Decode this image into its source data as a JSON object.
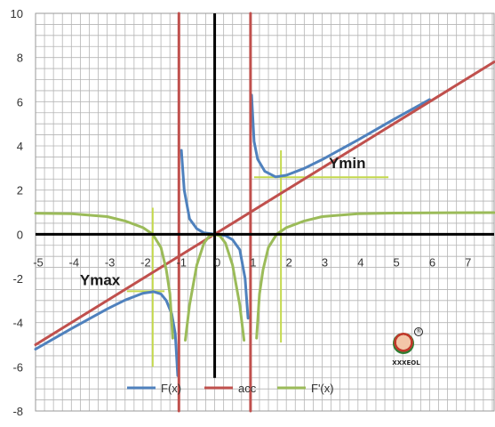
{
  "chart_data": {
    "type": "line",
    "title": "",
    "xlabel": "",
    "ylabel": "",
    "xlim": [
      -5,
      7.8
    ],
    "ylim": [
      -8,
      10
    ],
    "x_ticks": [
      -5,
      -4,
      -3,
      -2,
      -1,
      0,
      1,
      2,
      3,
      4,
      5,
      6,
      7
    ],
    "x_tick_labels": [
      "-5",
      "-4",
      "-3",
      "-2",
      "-1",
      "0",
      "1",
      "2",
      "3",
      "4",
      "5",
      "6",
      "7"
    ],
    "y_ticks": [
      -8,
      -6,
      -4,
      -2,
      0,
      2,
      4,
      6,
      8,
      10
    ],
    "y_tick_labels": [
      "-8",
      "-6",
      "-4",
      "-2",
      "0",
      "2",
      "4",
      "6",
      "8",
      "10"
    ],
    "grid": true,
    "legend_position": "bottom-center",
    "series": [
      {
        "name": "F(x)",
        "color": "#4F81BD",
        "segments": [
          [
            [
              -5,
              -5.2
            ],
            [
              -4,
              -4.27
            ],
            [
              -3,
              -3.38
            ],
            [
              -2.5,
              -2.98
            ],
            [
              -2,
              -2.67
            ],
            [
              -1.7,
              -2.6
            ],
            [
              -1.5,
              -2.7
            ],
            [
              -1.35,
              -3.0
            ],
            [
              -1.2,
              -3.6
            ],
            [
              -1.1,
              -4.5
            ],
            [
              -1.03,
              -6.4
            ]
          ],
          [
            [
              -0.93,
              3.8
            ],
            [
              -0.85,
              2.0
            ],
            [
              -0.7,
              0.7
            ],
            [
              -0.5,
              0.25
            ],
            [
              -0.3,
              0.06
            ],
            [
              0,
              0
            ],
            [
              0.3,
              -0.06
            ],
            [
              0.5,
              -0.25
            ],
            [
              0.7,
              -0.7
            ],
            [
              0.85,
              -2.0
            ],
            [
              0.93,
              -3.8
            ]
          ],
          [
            [
              1.03,
              6.3
            ],
            [
              1.1,
              4.2
            ],
            [
              1.2,
              3.4
            ],
            [
              1.4,
              2.85
            ],
            [
              1.7,
              2.6
            ],
            [
              2,
              2.67
            ],
            [
              2.5,
              2.98
            ],
            [
              3,
              3.38
            ],
            [
              4,
              4.27
            ],
            [
              5,
              5.2
            ],
            [
              6,
              6.1
            ]
          ]
        ]
      },
      {
        "name": "acc",
        "color": "#C0504D",
        "segments": [
          [
            [
              -5,
              -5
            ],
            [
              7.8,
              7.8
            ]
          ],
          [
            [
              -1,
              10
            ],
            [
              -1,
              -8
            ]
          ],
          [
            [
              1,
              10
            ],
            [
              1,
              -8
            ]
          ]
        ]
      },
      {
        "name": "F'(x)",
        "color": "#9BBB59",
        "segments": [
          [
            [
              -5,
              0.95
            ],
            [
              -4,
              0.93
            ],
            [
              -3,
              0.8
            ],
            [
              -2.5,
              0.6
            ],
            [
              -2,
              0.3
            ],
            [
              -1.73,
              0
            ],
            [
              -1.5,
              -0.6
            ],
            [
              -1.35,
              -1.6
            ],
            [
              -1.25,
              -2.7
            ],
            [
              -1.17,
              -4.7
            ]
          ],
          [
            [
              -0.82,
              -4.8
            ],
            [
              -0.7,
              -3.2
            ],
            [
              -0.5,
              -1.4
            ],
            [
              -0.3,
              -0.4
            ],
            [
              -0.15,
              -0.08
            ],
            [
              0,
              0
            ],
            [
              0.15,
              -0.08
            ],
            [
              0.3,
              -0.4
            ],
            [
              0.5,
              -1.4
            ],
            [
              0.7,
              -3.2
            ],
            [
              0.82,
              -4.8
            ]
          ],
          [
            [
              1.17,
              -4.7
            ],
            [
              1.25,
              -2.7
            ],
            [
              1.35,
              -1.6
            ],
            [
              1.5,
              -0.6
            ],
            [
              1.73,
              0
            ],
            [
              2,
              0.3
            ],
            [
              2.5,
              0.6
            ],
            [
              3,
              0.8
            ],
            [
              4,
              0.93
            ],
            [
              5,
              0.96
            ],
            [
              6,
              0.97
            ],
            [
              7.8,
              0.98
            ]
          ]
        ]
      }
    ],
    "guides": {
      "color": "#C4D94D",
      "lines": [
        [
          [
            -2.45,
            -2.58
          ],
          [
            -1.4,
            -2.58
          ]
        ],
        [
          [
            -1.73,
            1.2
          ],
          [
            -1.73,
            -6.0
          ]
        ],
        [
          [
            1.1,
            2.58
          ],
          [
            4.85,
            2.58
          ]
        ],
        [
          [
            1.85,
            3.8
          ],
          [
            1.85,
            -4.9
          ]
        ]
      ]
    },
    "annotations": [
      {
        "text": "Ymin",
        "x": 3.7,
        "y": 3.0
      },
      {
        "text": "Ymax",
        "x": -3.2,
        "y": -2.3
      }
    ],
    "logo": {
      "text": "XXXEOL",
      "mark": "®"
    }
  }
}
